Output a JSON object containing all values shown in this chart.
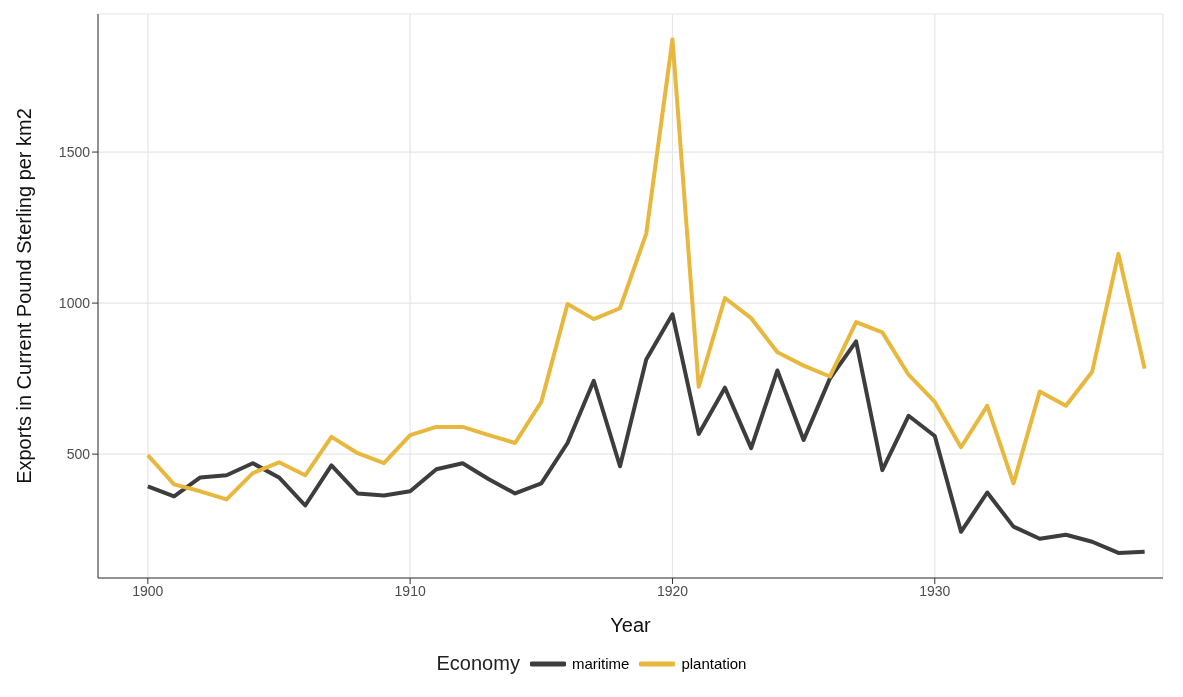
{
  "chart_data": {
    "type": "line",
    "xlabel": "Year",
    "ylabel": "Exports in Current Pound Sterling per km2",
    "legend_title": "Economy",
    "legend": "bottom",
    "grid": true,
    "line_style": "solid",
    "marker": "none",
    "x": [
      1900,
      1901,
      1902,
      1903,
      1904,
      1905,
      1906,
      1907,
      1908,
      1909,
      1910,
      1911,
      1912,
      1913,
      1914,
      1915,
      1916,
      1917,
      1918,
      1919,
      1920,
      1921,
      1922,
      1923,
      1924,
      1925,
      1926,
      1927,
      1928,
      1929,
      1930,
      1931,
      1932,
      1933,
      1934,
      1935,
      1936,
      1937,
      1938
    ],
    "xlim": [
      1898.1,
      1938.7
    ],
    "xticks": [
      1900,
      1910,
      1920,
      1930
    ],
    "ylim": [
      90,
      1957
    ],
    "yticks": [
      500,
      1000,
      1500
    ],
    "series": [
      {
        "name": "maritime",
        "color": "#3d3d3d",
        "values": [
          393,
          360,
          423,
          430,
          470,
          423,
          330,
          463,
          370,
          363,
          377,
          450,
          470,
          417,
          370,
          403,
          537,
          743,
          460,
          813,
          963,
          567,
          720,
          520,
          777,
          547,
          750,
          873,
          447,
          627,
          560,
          243,
          373,
          260,
          220,
          233,
          210,
          173,
          177
        ]
      },
      {
        "name": "plantation",
        "color": "#e8b83e",
        "values": [
          497,
          400,
          377,
          350,
          437,
          473,
          430,
          557,
          503,
          470,
          563,
          590,
          590,
          563,
          537,
          673,
          997,
          947,
          983,
          1230,
          1873,
          723,
          1017,
          950,
          837,
          793,
          757,
          937,
          903,
          763,
          673,
          523,
          660,
          403,
          707,
          660,
          773,
          1163,
          783
        ]
      }
    ]
  }
}
